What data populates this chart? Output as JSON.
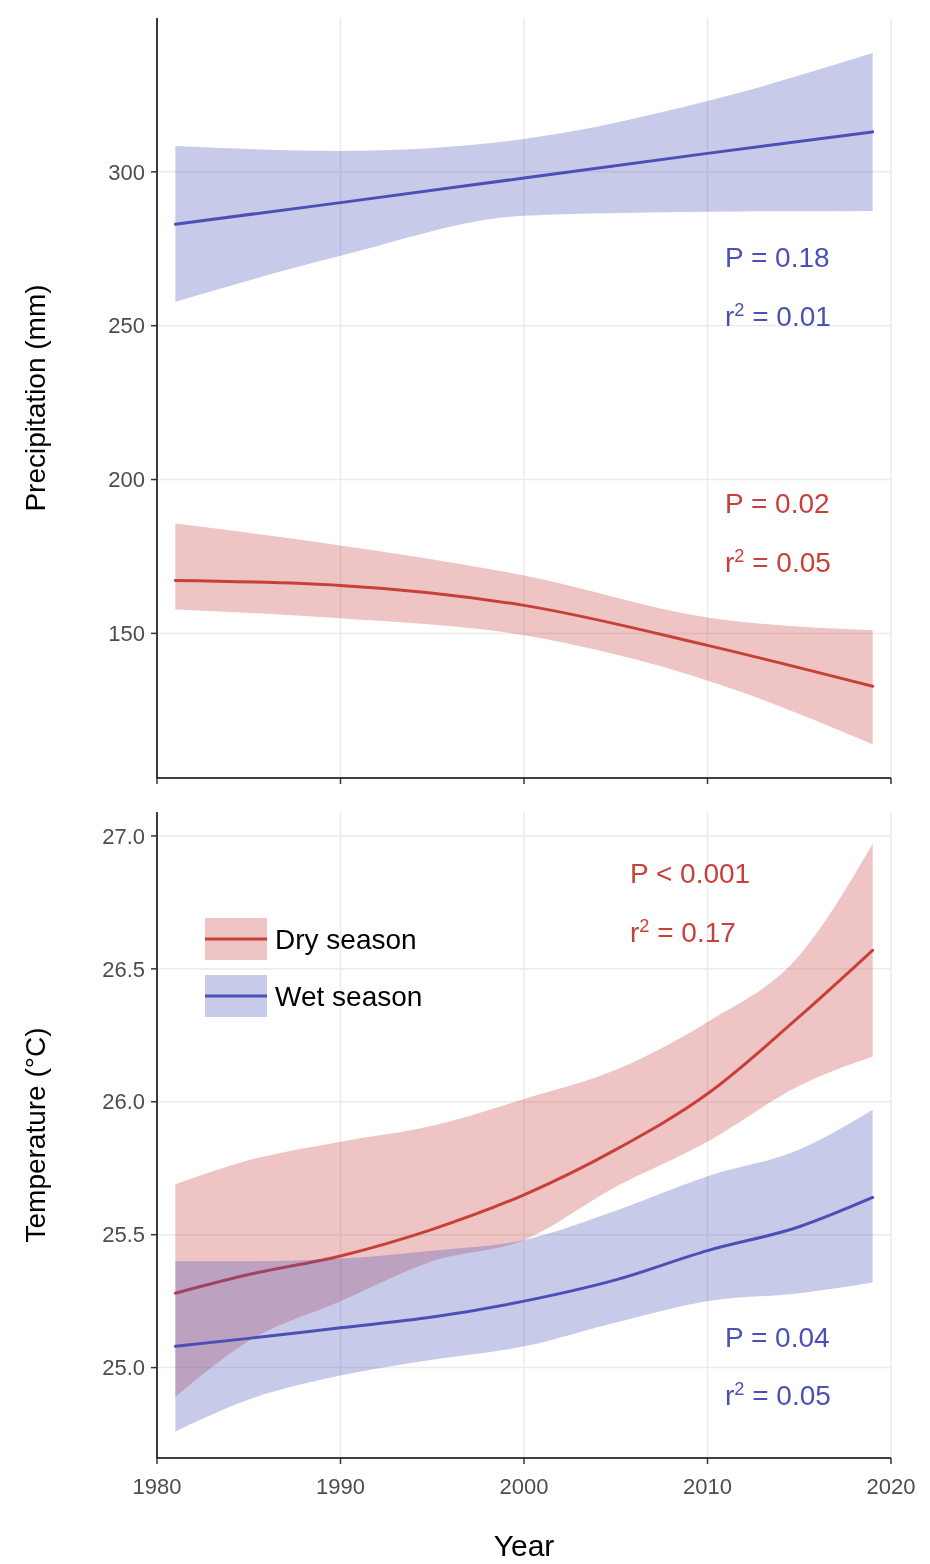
{
  "chart_data": [
    {
      "type": "line",
      "ylabel": "Precipitation (mm)",
      "xlim": [
        1980,
        2020
      ],
      "xticks": [
        1980,
        1990,
        2000,
        2010,
        2020
      ],
      "ylim": [
        103,
        350
      ],
      "yticks": [
        150,
        200,
        250,
        300
      ],
      "grid": true,
      "tick_labels": "y",
      "series": [
        {
          "color": "#c8403a",
          "x": [
            1981,
            1990,
            2000,
            2010,
            2019
          ],
          "values": [
            167.2,
            165.6,
            159.1,
            146.1,
            132.8
          ],
          "lower": [
            157.8,
            154.9,
            149.4,
            134.7,
            114
          ],
          "upper": [
            185.7,
            178.6,
            168.8,
            155.2,
            151
          ]
        },
        {
          "color": "#4a50b5",
          "x": [
            1981,
            1990,
            2000,
            2010,
            2019
          ],
          "values": [
            283,
            290,
            298,
            306,
            313
          ],
          "lower": [
            257.8,
            272.7,
            285.7,
            287,
            287.3
          ],
          "upper": [
            308.4,
            306.8,
            310.7,
            323,
            338.6
          ]
        }
      ],
      "annotations": [
        "P = 0.02",
        "r$^{2}$ = 0.05",
        "P = 0.18",
        "r$^{2}$ = 0.01"
      ]
    },
    {
      "type": "line",
      "xlabel": "Year",
      "ylabel": "Temperature (°C)",
      "xlim": [
        1980,
        2020
      ],
      "xticks": [
        1980,
        1990,
        2000,
        2010,
        2020
      ],
      "ylim": [
        24.66,
        27.09
      ],
      "yticks": [
        {
          "value": 25,
          "label": "25.0"
        },
        25.5,
        {
          "value": 26,
          "label": "26.0"
        },
        26.5,
        {
          "value": 27,
          "label": "27.0"
        }
      ],
      "grid": true,
      "legend": "top left",
      "series": [
        {
          "name": "Dry season",
          "color": "#c8403a",
          "x": [
            1981,
            1985,
            1990,
            1995,
            2000,
            2005,
            2010,
            2015,
            2019
          ],
          "values": [
            25.28,
            25.35,
            25.42,
            25.52,
            25.65,
            25.82,
            26.03,
            26.32,
            26.57
          ],
          "lower": [
            24.89,
            25.1,
            25.25,
            25.4,
            25.48,
            25.68,
            25.85,
            26.06,
            26.17
          ],
          "upper": [
            25.69,
            25.78,
            25.85,
            25.91,
            26.01,
            26.12,
            26.3,
            26.55,
            26.97
          ]
        },
        {
          "name": "Wet season",
          "color": "#4a50b5",
          "x": [
            1981,
            1985,
            1990,
            1995,
            2000,
            2005,
            2010,
            2015,
            2019
          ],
          "values": [
            25.08,
            25.11,
            25.15,
            25.19,
            25.25,
            25.33,
            25.44,
            25.53,
            25.64
          ],
          "lower": [
            24.76,
            24.88,
            24.97,
            25.03,
            25.08,
            25.17,
            25.25,
            25.28,
            25.32
          ],
          "upper": [
            25.4,
            25.4,
            25.41,
            25.44,
            25.48,
            25.59,
            25.72,
            25.82,
            25.97
          ]
        }
      ],
      "annotations": [
        "P < 0.001",
        "r$^{2}$ = 0.17",
        "P = 0.04",
        "r$^{2}$ = 0.05"
      ]
    }
  ]
}
